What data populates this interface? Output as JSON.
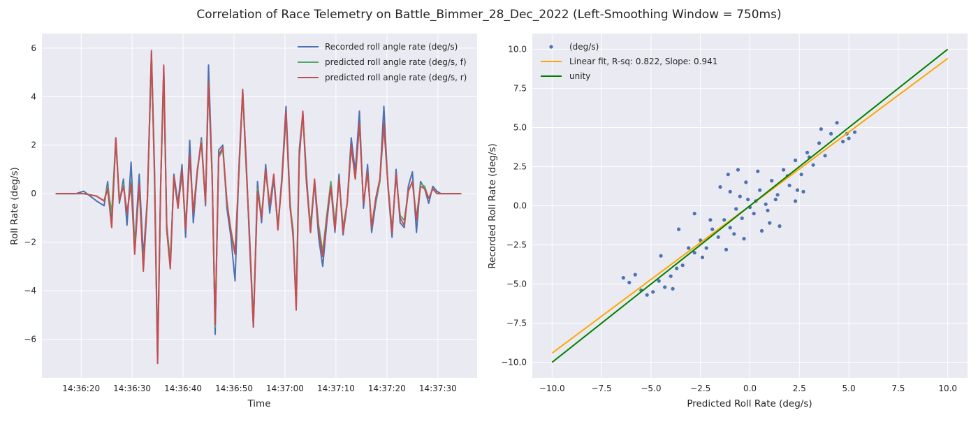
{
  "figure": {
    "title": "Correlation of Race Telemetry on Battle_Bimmer_28_Dec_2022 (Left-Smoothing Window = 750ms)",
    "colors": {
      "panel_bg": "#eaeaf2",
      "grid": "#ffffff"
    }
  },
  "chart_data": [
    {
      "type": "line",
      "xlabel": "Time",
      "ylabel": "Roll Rate (deg/s)",
      "x_tick_labels": [
        "14:36:20",
        "14:36:30",
        "14:36:40",
        "14:36:50",
        "14:37:00",
        "14:37:10",
        "14:37:20",
        "14:37:30"
      ],
      "x_tick_seconds": [
        20,
        30,
        40,
        50,
        60,
        70,
        80,
        90
      ],
      "yticks": [
        -6,
        -4,
        -2,
        0,
        2,
        4,
        6
      ],
      "ylim": [
        -7.6,
        6.6
      ],
      "xlim_seconds": [
        12.3,
        97.7
      ],
      "legend_position": "upper-right",
      "x_seconds": [
        15,
        19,
        20.5,
        23,
        24.5,
        25.2,
        26,
        26.8,
        27.5,
        28.3,
        29,
        29.8,
        30.5,
        31.4,
        32.2,
        33,
        33.8,
        34.4,
        35,
        35.6,
        36.2,
        36.8,
        37.5,
        38.2,
        39,
        39.8,
        40.5,
        41.3,
        42,
        42.8,
        43.6,
        44.4,
        45,
        45.7,
        46.3,
        47,
        47.8,
        48.6,
        49.4,
        50.2,
        51,
        51.7,
        52.4,
        53,
        53.8,
        54.6,
        55.4,
        56.2,
        57,
        57.8,
        58.6,
        59.4,
        60.2,
        61,
        61.6,
        62.2,
        62.8,
        63.5,
        64.2,
        65,
        65.8,
        66.6,
        67.4,
        68.2,
        69,
        69.8,
        70.6,
        71.4,
        72.2,
        73,
        73.8,
        74.6,
        75.4,
        76.2,
        77,
        77.8,
        78.6,
        79.4,
        80.2,
        81,
        81.8,
        82.6,
        83.4,
        84.2,
        85,
        85.8,
        86.6,
        87.4,
        88.2,
        89,
        89.8,
        90.6,
        91.5,
        92.5,
        93.5,
        94.6
      ],
      "series": [
        {
          "name": "Recorded roll angle rate (deg/s)",
          "color": "#4c72b0",
          "values": [
            0,
            0,
            0.1,
            -0.3,
            -0.5,
            0.5,
            -1.2,
            2.2,
            -0.4,
            0.6,
            -1.3,
            1.3,
            -2.2,
            0.8,
            -2.6,
            -0.2,
            5.8,
            1,
            -6.8,
            0.3,
            5.2,
            -1.5,
            -3,
            0.8,
            -0.4,
            1.2,
            -1.8,
            2.2,
            -1.2,
            0.9,
            2.3,
            -0.5,
            5.3,
            0.8,
            -5.8,
            1.8,
            2,
            -0.6,
            -1.8,
            -3.6,
            1.3,
            4.2,
            1.3,
            -1.8,
            -5.5,
            0.5,
            -1.2,
            1.2,
            -0.8,
            0.6,
            -1.4,
            0.7,
            3.6,
            -0.4,
            -1.8,
            -4.5,
            1.8,
            3.3,
            0.8,
            -1.6,
            0.5,
            -1.8,
            -3,
            -1.2,
            0.3,
            -1.6,
            0.8,
            -1.7,
            -0.4,
            2.3,
            0.9,
            3.4,
            -0.6,
            1.2,
            -1.6,
            -0.4,
            0.5,
            3.6,
            0.3,
            -1.8,
            1,
            -1.2,
            -1.4,
            0.3,
            0.9,
            -1.6,
            0.5,
            0.2,
            -0.4,
            0.3,
            0.1,
            0,
            0,
            0,
            0,
            0
          ]
        },
        {
          "name": "predicted roll angle rate (deg/s, f)",
          "color": "#55a868",
          "values": [
            0,
            0,
            0,
            -0.1,
            -0.3,
            0.3,
            -0.8,
            2.3,
            -0.3,
            0.4,
            -0.8,
            0.5,
            -2.2,
            0.3,
            -3,
            -0.3,
            5.6,
            0.8,
            -6.8,
            0.4,
            4.8,
            -1.3,
            -2.8,
            0.6,
            -0.5,
            0.8,
            -1.3,
            1.5,
            -0.8,
            0.9,
            2.2,
            -0.3,
            4.6,
            0.7,
            -5.5,
            1.5,
            1.8,
            -0.4,
            -1.5,
            -2.4,
            1,
            4.2,
            1,
            -1.5,
            -5.3,
            0.2,
            -0.9,
            0.9,
            -0.5,
            0.7,
            -1.3,
            0.5,
            3.2,
            -0.5,
            -1.5,
            -4.6,
            1.5,
            3.3,
            0.5,
            -1.3,
            0.5,
            -1.3,
            -2.4,
            -0.9,
            0.5,
            -1.3,
            0.6,
            -1.4,
            -0.4,
            1.9,
            0.6,
            2.9,
            -0.4,
            0.9,
            -1.3,
            -0.3,
            0.5,
            2.8,
            0.4,
            -1.5,
            0.7,
            -0.9,
            -1.1,
            0.1,
            0.5,
            -1,
            0.4,
            0.3,
            -0.2,
            0.2,
            0,
            0,
            0,
            0,
            0,
            0
          ]
        },
        {
          "name": "predicted roll angle rate (deg/s, r)",
          "color": "#c44e52",
          "values": [
            0,
            0,
            0,
            -0.1,
            -0.3,
            0.2,
            -1.4,
            2.3,
            -0.3,
            0.3,
            -0.8,
            0.4,
            -2.5,
            0.4,
            -3.2,
            -0.2,
            5.9,
            0.6,
            -7,
            0.4,
            5.3,
            -1.5,
            -3.1,
            0.7,
            -0.6,
            1,
            -1.5,
            1.6,
            -0.8,
            1,
            2.1,
            -0.4,
            4.6,
            0.7,
            -5.4,
            1.6,
            1.9,
            -0.3,
            -1.6,
            -2.5,
            1.1,
            4.3,
            1.1,
            -1.6,
            -5.5,
            0.1,
            -1,
            1,
            -0.5,
            0.8,
            -1.5,
            0.6,
            3.4,
            -0.6,
            -1.7,
            -4.8,
            1.5,
            3.4,
            0.5,
            -1.6,
            0.6,
            -1.5,
            -2.6,
            -1,
            0.3,
            -1.5,
            0.6,
            -1.6,
            -0.4,
            2,
            0.6,
            2.9,
            -0.4,
            0.9,
            -1.4,
            -0.2,
            0.6,
            2.9,
            0.4,
            -1.6,
            0.8,
            -1,
            -1.3,
            0.1,
            0.5,
            -1.1,
            0.3,
            0.2,
            -0.2,
            0.2,
            0,
            0,
            0,
            0,
            0,
            0
          ]
        }
      ]
    },
    {
      "type": "scatter",
      "xlabel": "Predicted Roll Rate (deg/s)",
      "ylabel": "Recorded Roll Rate (deg/s)",
      "xticks": [
        -10,
        -7.5,
        -5,
        -2.5,
        0,
        2.5,
        5,
        7.5,
        10
      ],
      "yticks": [
        -10,
        -7.5,
        -5,
        -2.5,
        0,
        2.5,
        5,
        7.5,
        10
      ],
      "x_tick_labels": [
        "−10.0",
        "−7.5",
        "−5.0",
        "−2.5",
        "0.0",
        "2.5",
        "5.0",
        "7.5",
        "10.0"
      ],
      "y_tick_labels": [
        "−10.0",
        "−7.5",
        "−5.0",
        "−2.5",
        "0.0",
        "2.5",
        "5.0",
        "7.5",
        "10.0"
      ],
      "xlim": [
        -11,
        11
      ],
      "ylim": [
        -11,
        11
      ],
      "legend_position": "upper-left",
      "series": [
        {
          "name": "(deg/s)",
          "color": "#4c72b0",
          "points": [
            [
              -6.4,
              -4.6
            ],
            [
              -6.1,
              -4.9
            ],
            [
              -5.8,
              -4.4
            ],
            [
              -5.5,
              -5.4
            ],
            [
              -5.2,
              -5.7
            ],
            [
              -4.9,
              -5.5
            ],
            [
              -4.6,
              -4.8
            ],
            [
              -4.3,
              -5.2
            ],
            [
              -4.0,
              -4.5
            ],
            [
              -3.7,
              -4.0
            ],
            [
              -3.4,
              -3.8
            ],
            [
              -3.1,
              -2.7
            ],
            [
              -2.8,
              -3.0
            ],
            [
              -2.5,
              -2.2
            ],
            [
              -2.2,
              -2.7
            ],
            [
              -1.9,
              -1.5
            ],
            [
              -1.6,
              -2.0
            ],
            [
              -1.3,
              -0.9
            ],
            [
              -1.0,
              -1.4
            ],
            [
              -0.7,
              -0.2
            ],
            [
              -0.4,
              -0.8
            ],
            [
              -0.1,
              0.4
            ],
            [
              0.2,
              -0.5
            ],
            [
              0.5,
              1.0
            ],
            [
              0.8,
              0.1
            ],
            [
              1.1,
              1.6
            ],
            [
              1.4,
              0.7
            ],
            [
              1.7,
              2.3
            ],
            [
              2.0,
              1.3
            ],
            [
              2.3,
              2.9
            ],
            [
              2.6,
              2.0
            ],
            [
              2.9,
              3.4
            ],
            [
              3.2,
              2.6
            ],
            [
              3.5,
              4.0
            ],
            [
              3.8,
              3.2
            ],
            [
              4.1,
              4.6
            ],
            [
              4.4,
              5.3
            ],
            [
              4.7,
              4.1
            ],
            [
              5.0,
              4.3
            ],
            [
              5.3,
              4.7
            ],
            [
              -1.5,
              1.2
            ],
            [
              -1.1,
              2.0
            ],
            [
              -0.6,
              2.3
            ],
            [
              -0.2,
              1.5
            ],
            [
              0.4,
              2.2
            ],
            [
              1.0,
              -1.1
            ],
            [
              1.5,
              -1.3
            ],
            [
              0.6,
              -1.6
            ],
            [
              -0.3,
              -2.1
            ],
            [
              -0.8,
              -1.8
            ],
            [
              2.3,
              0.3
            ],
            [
              2.7,
              0.9
            ],
            [
              -2.8,
              -0.5
            ],
            [
              -3.6,
              -1.5
            ],
            [
              -2.4,
              -3.3
            ],
            [
              -1.2,
              -2.8
            ],
            [
              0.0,
              -0.1
            ],
            [
              0.3,
              0.3
            ],
            [
              -0.5,
              0.6
            ],
            [
              0.9,
              -0.3
            ],
            [
              1.9,
              1.9
            ],
            [
              3.0,
              3.1
            ],
            [
              -4.5,
              -3.2
            ],
            [
              -3.9,
              -5.3
            ],
            [
              3.6,
              4.9
            ],
            [
              4.9,
              4.6
            ],
            [
              -1.0,
              0.9
            ],
            [
              1.3,
              0.4
            ],
            [
              -2.0,
              -0.9
            ],
            [
              2.4,
              1.0
            ]
          ]
        },
        {
          "name": "Linear fit, R-sq: 0.822, Slope: 0.941",
          "color": "#ffa500",
          "line": [
            [
              -10,
              -9.41
            ],
            [
              10,
              9.41
            ]
          ]
        },
        {
          "name": "unity",
          "color": "#008000",
          "line": [
            [
              -10,
              -10
            ],
            [
              10,
              10
            ]
          ]
        }
      ]
    }
  ]
}
